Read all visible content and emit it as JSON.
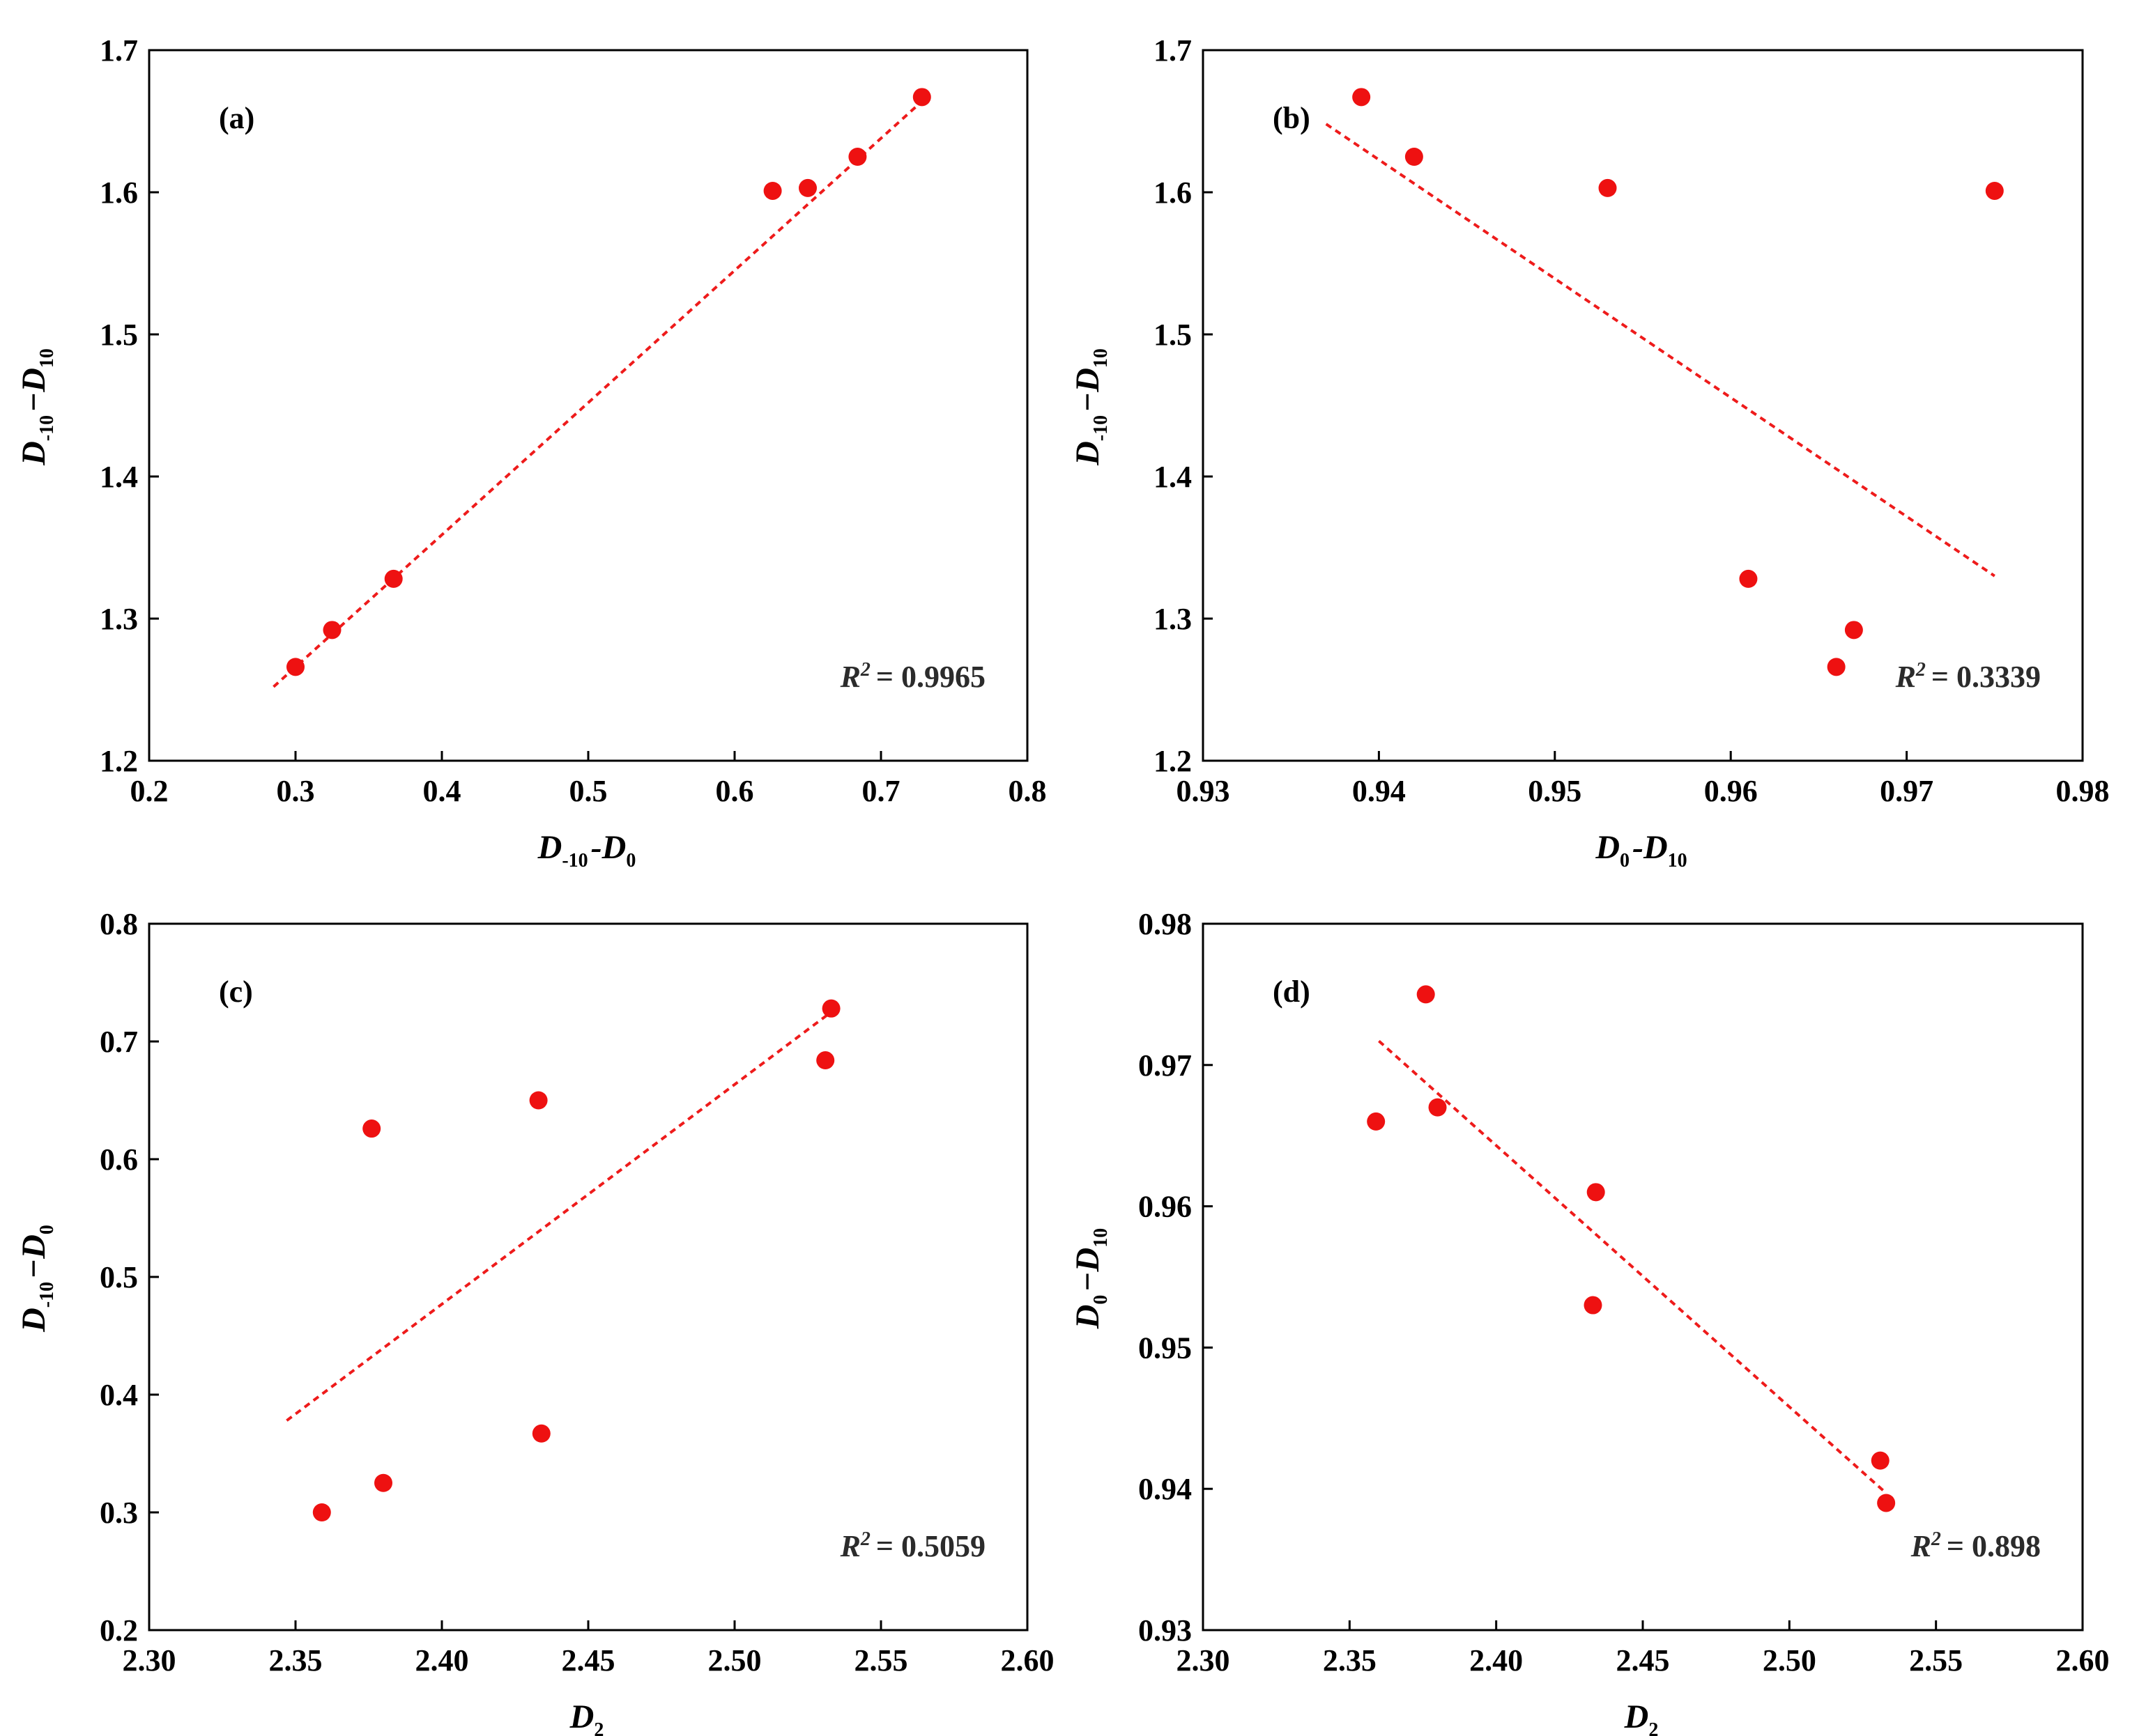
{
  "chart_data": [
    {
      "type": "scatter",
      "panel_label": "(a)",
      "xlabel": "D-10-D0",
      "xlabel_parts": [
        {
          "text": "D",
          "sub": "-10"
        },
        {
          "text": "-"
        },
        {
          "text": "D",
          "sub": "0"
        }
      ],
      "ylabel": "D-10−D10",
      "ylabel_parts": [
        {
          "text": "D",
          "sub": "-10"
        },
        {
          "text": "−"
        },
        {
          "text": "D",
          "sub": "10"
        }
      ],
      "xlim": [
        0.2,
        0.8
      ],
      "ylim": [
        1.2,
        1.7
      ],
      "xticks": [
        0.2,
        0.3,
        0.4,
        0.5,
        0.6,
        0.7,
        0.8
      ],
      "yticks": [
        1.2,
        1.3,
        1.4,
        1.5,
        1.6,
        1.7
      ],
      "xtick_labels": [
        "0.2",
        "0.3",
        "0.4",
        "0.5",
        "0.6",
        "0.7",
        "0.8"
      ],
      "ytick_labels": [
        "1.2",
        "1.3",
        "1.4",
        "1.5",
        "1.6",
        "1.7"
      ],
      "points": [
        {
          "x": 0.3,
          "y": 1.266
        },
        {
          "x": 0.325,
          "y": 1.292
        },
        {
          "x": 0.367,
          "y": 1.328
        },
        {
          "x": 0.626,
          "y": 1.601
        },
        {
          "x": 0.65,
          "y": 1.603
        },
        {
          "x": 0.684,
          "y": 1.625
        },
        {
          "x": 0.728,
          "y": 1.667
        }
      ],
      "trendline": {
        "x": [
          0.285,
          0.728
        ],
        "y": [
          1.252,
          1.664
        ]
      },
      "r2_label": "R",
      "r2_sup": "2",
      "r2_value": "= 0.9965",
      "legend_position": "bottom-right"
    },
    {
      "type": "scatter",
      "panel_label": "(b)",
      "xlabel": "D0-D10",
      "xlabel_parts": [
        {
          "text": "D",
          "sub": "0"
        },
        {
          "text": "-"
        },
        {
          "text": "D",
          "sub": "10"
        }
      ],
      "ylabel": "D-10−D10",
      "ylabel_parts": [
        {
          "text": "D",
          "sub": "-10"
        },
        {
          "text": "−"
        },
        {
          "text": "D",
          "sub": "10"
        }
      ],
      "xlim": [
        0.93,
        0.98
      ],
      "ylim": [
        1.2,
        1.7
      ],
      "xticks": [
        0.93,
        0.94,
        0.95,
        0.96,
        0.97,
        0.98
      ],
      "yticks": [
        1.2,
        1.3,
        1.4,
        1.5,
        1.6,
        1.7
      ],
      "xtick_labels": [
        "0.93",
        "0.94",
        "0.95",
        "0.96",
        "0.97",
        "0.98"
      ],
      "ytick_labels": [
        "1.2",
        "1.3",
        "1.4",
        "1.5",
        "1.6",
        "1.7"
      ],
      "points": [
        {
          "x": 0.939,
          "y": 1.667
        },
        {
          "x": 0.942,
          "y": 1.625
        },
        {
          "x": 0.953,
          "y": 1.603
        },
        {
          "x": 0.975,
          "y": 1.601
        },
        {
          "x": 0.961,
          "y": 1.328
        },
        {
          "x": 0.967,
          "y": 1.292
        },
        {
          "x": 0.966,
          "y": 1.266
        }
      ],
      "trendline": {
        "x": [
          0.937,
          0.975
        ],
        "y": [
          1.648,
          1.33
        ]
      },
      "r2_label": "R",
      "r2_sup": "2",
      "r2_value": "= 0.3339",
      "legend_position": "bottom-right"
    },
    {
      "type": "scatter",
      "panel_label": "(c)",
      "xlabel": "D2",
      "xlabel_parts": [
        {
          "text": "D",
          "sub": "2"
        }
      ],
      "ylabel": "D-10−D0",
      "ylabel_parts": [
        {
          "text": "D",
          "sub": "-10"
        },
        {
          "text": "−"
        },
        {
          "text": "D",
          "sub": "0"
        }
      ],
      "xlim": [
        2.3,
        2.6
      ],
      "ylim": [
        0.2,
        0.8
      ],
      "xticks": [
        2.3,
        2.35,
        2.4,
        2.45,
        2.5,
        2.55,
        2.6
      ],
      "yticks": [
        0.2,
        0.3,
        0.4,
        0.5,
        0.6,
        0.7,
        0.8
      ],
      "xtick_labels": [
        "2.30",
        "2.35",
        "2.40",
        "2.45",
        "2.50",
        "2.55",
        "2.60"
      ],
      "ytick_labels": [
        "0.2",
        "0.3",
        "0.4",
        "0.5",
        "0.6",
        "0.7",
        "0.8"
      ],
      "points": [
        {
          "x": 2.359,
          "y": 0.3
        },
        {
          "x": 2.38,
          "y": 0.325
        },
        {
          "x": 2.376,
          "y": 0.626
        },
        {
          "x": 2.434,
          "y": 0.367
        },
        {
          "x": 2.433,
          "y": 0.65
        },
        {
          "x": 2.531,
          "y": 0.684
        },
        {
          "x": 2.533,
          "y": 0.728
        }
      ],
      "trendline": {
        "x": [
          2.347,
          2.533
        ],
        "y": [
          0.378,
          0.725
        ]
      },
      "r2_label": "R",
      "r2_sup": "2",
      "r2_value": "= 0.5059",
      "legend_position": "bottom-right"
    },
    {
      "type": "scatter",
      "panel_label": "(d)",
      "xlabel": "D2",
      "xlabel_parts": [
        {
          "text": "D",
          "sub": "2"
        }
      ],
      "ylabel": "D0−D10",
      "ylabel_parts": [
        {
          "text": "D",
          "sub": "0"
        },
        {
          "text": "−"
        },
        {
          "text": "D",
          "sub": "10"
        }
      ],
      "xlim": [
        2.3,
        2.6
      ],
      "ylim": [
        0.93,
        0.98
      ],
      "xticks": [
        2.3,
        2.35,
        2.4,
        2.45,
        2.5,
        2.55,
        2.6
      ],
      "yticks": [
        0.93,
        0.94,
        0.95,
        0.96,
        0.97,
        0.98
      ],
      "xtick_labels": [
        "2.30",
        "2.35",
        "2.40",
        "2.45",
        "2.50",
        "2.55",
        "2.60"
      ],
      "ytick_labels": [
        "0.93",
        "0.94",
        "0.95",
        "0.96",
        "0.97",
        "0.98"
      ],
      "points": [
        {
          "x": 2.359,
          "y": 0.966
        },
        {
          "x": 2.376,
          "y": 0.975
        },
        {
          "x": 2.38,
          "y": 0.967
        },
        {
          "x": 2.434,
          "y": 0.961
        },
        {
          "x": 2.433,
          "y": 0.953
        },
        {
          "x": 2.531,
          "y": 0.942
        },
        {
          "x": 2.533,
          "y": 0.939
        }
      ],
      "trendline": {
        "x": [
          2.36,
          2.533
        ],
        "y": [
          0.9717,
          0.9397
        ]
      },
      "r2_label": "R",
      "r2_sup": "2",
      "r2_value": "= 0.898",
      "legend_position": "bottom-right"
    }
  ],
  "colors": {
    "point": "#ee1111",
    "trendline": "#ee1b1b",
    "axes": "#000000",
    "r2_text": "#2b2b2b"
  }
}
